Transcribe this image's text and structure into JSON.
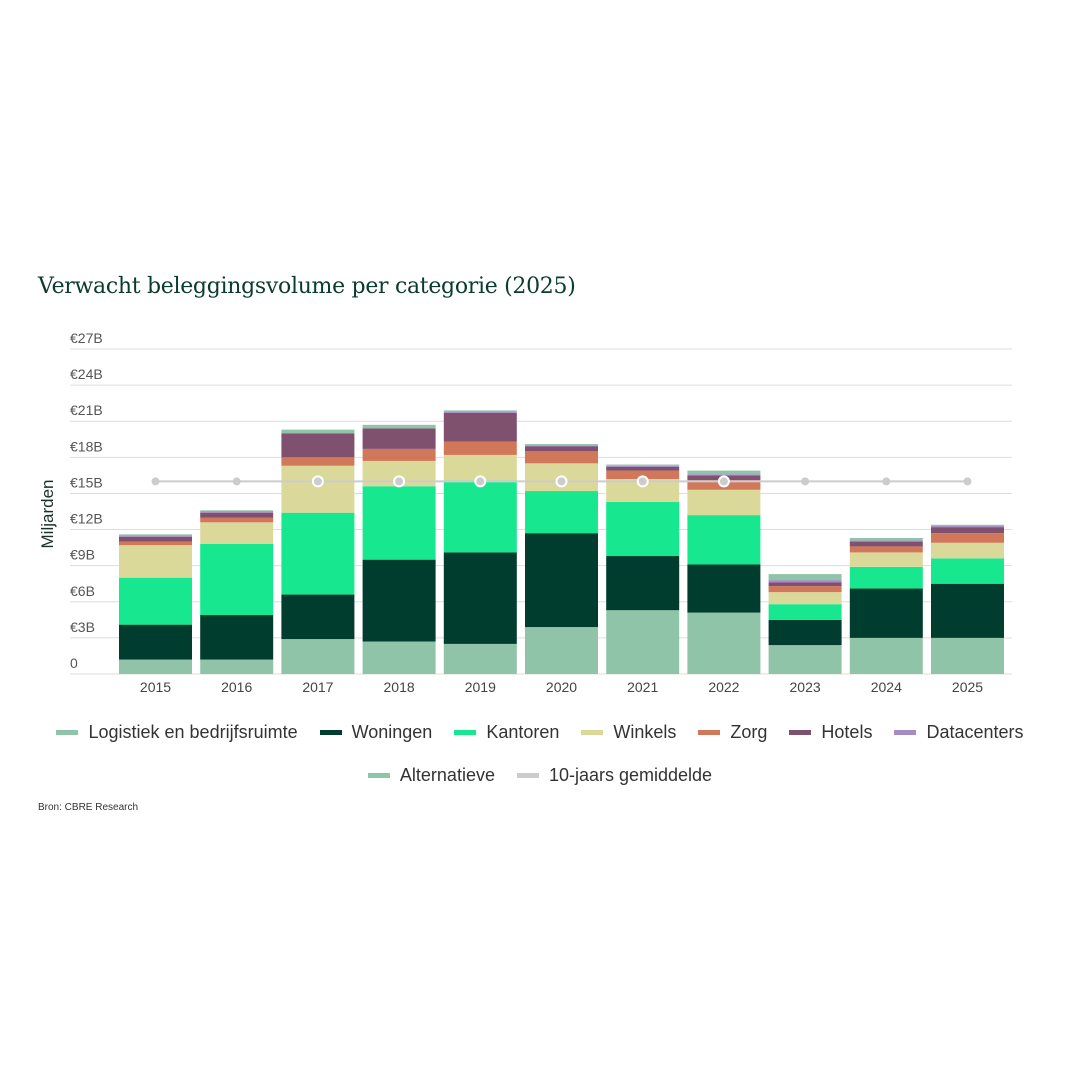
{
  "source": "Bron: CBRE Research",
  "chart_data": {
    "type": "bar",
    "stacked": true,
    "title": "Verwacht beleggingsvolume per categorie (2025)",
    "xlabel": "",
    "ylabel": "Miljarden",
    "ylim": [
      0,
      27
    ],
    "yticks": [
      {
        "value": 0,
        "label": "0"
      },
      {
        "value": 3,
        "label": "€3B"
      },
      {
        "value": 6,
        "label": "€6B"
      },
      {
        "value": 9,
        "label": "€9B"
      },
      {
        "value": 12,
        "label": "€12B"
      },
      {
        "value": 15,
        "label": "€15B"
      },
      {
        "value": 18,
        "label": "€18B"
      },
      {
        "value": 21,
        "label": "€21B"
      },
      {
        "value": 24,
        "label": "€24B"
      },
      {
        "value": 27,
        "label": "€27B"
      }
    ],
    "categories": [
      "2015",
      "2016",
      "2017",
      "2018",
      "2019",
      "2020",
      "2021",
      "2022",
      "2023",
      "2024",
      "2025"
    ],
    "series": [
      {
        "name": "Logistiek en bedrijfsruimte",
        "color": "#8fc4a9",
        "values": [
          1.2,
          1.2,
          2.9,
          2.7,
          2.5,
          3.9,
          5.3,
          5.1,
          2.4,
          3.0,
          3.0
        ]
      },
      {
        "name": "Woningen",
        "color": "#003d2e",
        "values": [
          2.9,
          3.7,
          3.7,
          6.8,
          7.6,
          7.8,
          4.5,
          4.0,
          2.1,
          4.1,
          4.5
        ]
      },
      {
        "name": "Kantoren",
        "color": "#17e88f",
        "values": [
          3.9,
          5.9,
          6.8,
          6.1,
          6.0,
          3.5,
          4.5,
          4.1,
          1.3,
          1.8,
          2.1
        ]
      },
      {
        "name": "Winkels",
        "color": "#dbd99a",
        "values": [
          2.7,
          1.8,
          3.9,
          2.1,
          2.1,
          2.3,
          1.9,
          2.1,
          1.0,
          1.2,
          1.3
        ]
      },
      {
        "name": "Zorg",
        "color": "#d2785a",
        "values": [
          0.3,
          0.4,
          0.7,
          1.0,
          1.1,
          1.0,
          0.7,
          0.8,
          0.5,
          0.5,
          0.8
        ]
      },
      {
        "name": "Hotels",
        "color": "#80506f",
        "values": [
          0.4,
          0.4,
          2.0,
          1.7,
          2.4,
          0.4,
          0.3,
          0.4,
          0.3,
          0.4,
          0.5
        ]
      },
      {
        "name": "Datacenters",
        "color": "#a68cc4",
        "values": [
          0.1,
          0.1,
          0.0,
          0.0,
          0.1,
          0.1,
          0.1,
          0.1,
          0.2,
          0.1,
          0.1
        ]
      },
      {
        "name": "Alternatieve",
        "color": "#8fc4a9",
        "values": [
          0.1,
          0.1,
          0.3,
          0.3,
          0.1,
          0.1,
          0.1,
          0.3,
          0.5,
          0.2,
          0.1
        ]
      }
    ],
    "average": {
      "name": "10-jaars gemiddelde",
      "color": "#cccccc",
      "value": 16.0,
      "highlighted": [
        "2017",
        "2018",
        "2019",
        "2020",
        "2021",
        "2022"
      ]
    },
    "legend": [
      [
        "Logistiek en bedrijfsruimte",
        "Woningen",
        "Kantoren",
        "Winkels",
        "Zorg",
        "Hotels",
        "Datacenters"
      ],
      [
        "Alternatieve",
        "10-jaars gemiddelde"
      ]
    ]
  }
}
